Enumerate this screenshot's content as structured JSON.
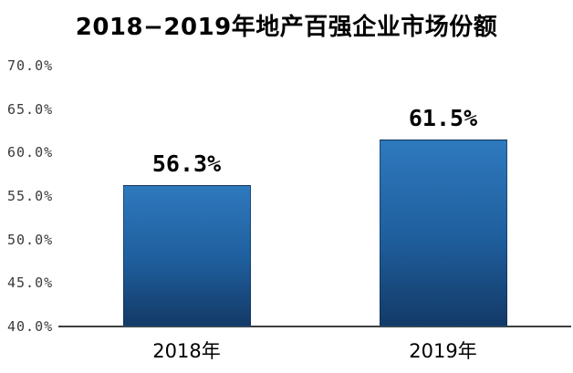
{
  "chart_data": {
    "type": "bar",
    "title": "2018−2019年地产百强企业市场份额",
    "categories": [
      "2018年",
      "2019年"
    ],
    "values": [
      56.3,
      61.5
    ],
    "value_labels": [
      "56.3%",
      "61.5%"
    ],
    "xlabel": "",
    "ylabel": "",
    "ylim": [
      40,
      70
    ],
    "ytick_step": 5,
    "ytick_labels": [
      "40.0%",
      "45.0%",
      "50.0%",
      "55.0%",
      "60.0%",
      "65.0%",
      "70.0%"
    ],
    "grid": false,
    "legend": "none",
    "colors": {
      "bar_gradient_top": "#2E79BD",
      "bar_gradient_mid": "#1F5F9E",
      "bar_gradient_bottom": "#133A67",
      "axis_line": "#3F3F3F",
      "tick_label": "#3A3A3A",
      "data_label": "#000000",
      "category_label": "#000000",
      "title": "#000000",
      "background": "#FFFFFF"
    }
  }
}
